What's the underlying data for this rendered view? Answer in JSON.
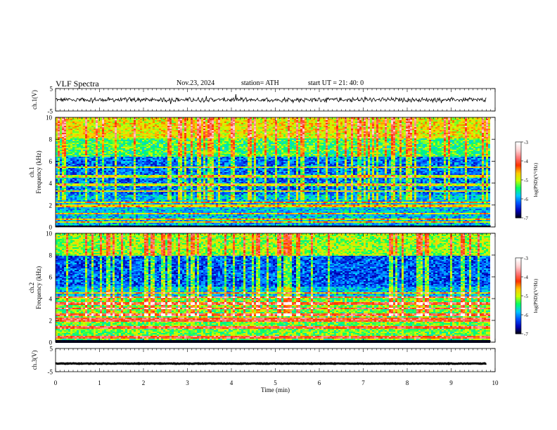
{
  "header": {
    "title": "VLF  Spectra",
    "date": "Nov.23, 2024",
    "station": "station= ATH",
    "start": "start  UT  =   21: 40: 0"
  },
  "chart_data": [
    {
      "id": "ch1-waveform",
      "type": "line",
      "ylabel": "ch.1(V)",
      "yticks": [
        "5",
        "-5"
      ],
      "ylim": [
        -5,
        5
      ],
      "xlim": [
        0,
        10
      ],
      "xlabel": "",
      "data_end_min": 9.8,
      "baseline": 0,
      "series_color": "#000000"
    },
    {
      "id": "ch1-spectrogram",
      "type": "heatmap",
      "ylabel": "ch.1\nFrequency  (kHz)",
      "ylabel_line1": "ch.1",
      "ylabel_line2": "Frequency  (kHz)",
      "ylim": [
        0,
        10
      ],
      "yticks": [
        "0",
        "2",
        "4",
        "6",
        "8",
        "10"
      ],
      "xlim": [
        0,
        10
      ],
      "colorbar": {
        "label": "log(PSD)(V²/Hz)",
        "range": [
          -7,
          -3
        ],
        "ticks": [
          "-3",
          "-4",
          "-5",
          "-6",
          "-7"
        ],
        "colormap": [
          "#000000",
          "#0000b4",
          "#0050ff",
          "#00c8ff",
          "#00ff64",
          "#c8ff00",
          "#ffc800",
          "#ff3200",
          "#ff7878",
          "#ffd2d2",
          "#ffffff"
        ]
      },
      "bands_khz": [
        0.5,
        0.8,
        1.3,
        2.0,
        2.3,
        3.3,
        3.9,
        4.7,
        5.5
      ]
    },
    {
      "id": "ch2-spectrogram",
      "type": "heatmap",
      "ylabel_line1": "ch.2",
      "ylabel_line2": "Frequency  (kHz)",
      "ylim": [
        0,
        10
      ],
      "yticks": [
        "0",
        "2",
        "4",
        "6",
        "8",
        "10"
      ],
      "xlim": [
        0,
        10
      ],
      "colorbar": {
        "label": "log(PSD)(V²/Hz)",
        "range": [
          -7,
          -3
        ],
        "ticks": [
          "-3",
          "-4",
          "-5",
          "-6",
          "-7"
        ]
      },
      "bands_khz": [
        0.5,
        1.4,
        2.0,
        2.2,
        2.6,
        3.2,
        3.6,
        4.2,
        4.6
      ]
    },
    {
      "id": "ch3-waveform",
      "type": "line",
      "ylabel": "ch.3(V)",
      "yticks": [
        "5",
        "-5"
      ],
      "ylim": [
        -5,
        5
      ],
      "xlim": [
        0,
        10
      ],
      "data_end_min": 9.8,
      "baseline": -1.5,
      "series_color": "#000000"
    }
  ],
  "xaxis": {
    "label": "Time  (min)",
    "ticks": [
      "0",
      "1",
      "2",
      "3",
      "4",
      "5",
      "6",
      "7",
      "8",
      "9",
      "10"
    ]
  }
}
